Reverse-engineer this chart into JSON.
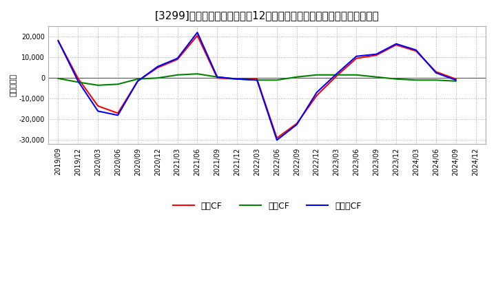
{
  "title": "[3299]　キャッシュフローの12か月移動合計の対前年同期増減額の推移",
  "ylabel": "（百万円）",
  "background_color": "#ffffff",
  "grid_color": "#aaaaaa",
  "ylim": [
    -32000,
    25000
  ],
  "yticks": [
    -30000,
    -20000,
    -10000,
    0,
    10000,
    20000
  ],
  "x_labels": [
    "2019/09",
    "2019/12",
    "2020/03",
    "2020/06",
    "2020/09",
    "2020/12",
    "2021/03",
    "2021/06",
    "2021/09",
    "2021/12",
    "2022/03",
    "2022/06",
    "2022/09",
    "2022/12",
    "2023/03",
    "2023/06",
    "2023/09",
    "2023/12",
    "2024/03",
    "2024/06",
    "2024/09",
    "2024/12"
  ],
  "eigyo_cf": [
    18000,
    -200,
    -13500,
    -17000,
    -1500,
    5000,
    9000,
    20500,
    0,
    -500,
    -500,
    -29000,
    -22000,
    -8500,
    1000,
    9500,
    11000,
    16000,
    13000,
    3000,
    -500,
    null
  ],
  "toshi_cf": [
    -200,
    -2000,
    -3500,
    -3000,
    -500,
    0,
    1500,
    2000,
    500,
    -500,
    -1000,
    -1000,
    500,
    1500,
    1500,
    1500,
    500,
    -500,
    -1000,
    -1000,
    -1500,
    null
  ],
  "free_cf": [
    18000,
    -1500,
    -16000,
    -18000,
    -1500,
    5500,
    9500,
    22000,
    500,
    -500,
    -1000,
    -30000,
    -22500,
    -7000,
    2000,
    10500,
    11500,
    16500,
    13500,
    2500,
    -1000,
    null
  ],
  "eigyo_color": "#ff0000",
  "toshi_color": "#008000",
  "free_color": "#0000ff",
  "line_width": 1.5,
  "title_fontsize": 11,
  "legend_labels": [
    "営業CF",
    "投資CF",
    "フリーCF"
  ]
}
